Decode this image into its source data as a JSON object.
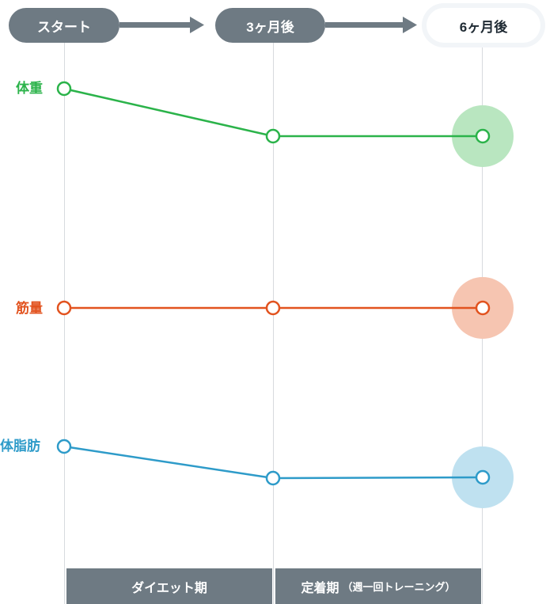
{
  "timeline": {
    "stages": [
      {
        "label": "スタート",
        "active": false
      },
      {
        "label": "3ヶ月後",
        "active": false
      },
      {
        "label": "6ヶ月後",
        "active": true
      }
    ]
  },
  "metrics": [
    {
      "label": "体重",
      "color": "#2bb34a",
      "halo": "#b9e6c0",
      "trend": "down, then flat"
    },
    {
      "label": "筋量",
      "color": "#e2531f",
      "halo": "#f6c5b1",
      "trend": "flat"
    },
    {
      "label": "体脂肪",
      "color": "#2e9bc9",
      "halo": "#bfe1f0",
      "trend": "down, then flat"
    }
  ],
  "phases": {
    "diet": {
      "label": "ダイエット期"
    },
    "settle": {
      "label": "定着期",
      "note": "（週一回トレーニング）"
    }
  },
  "colors": {
    "pill": "#6e7a83",
    "guide": "#d7dade"
  }
}
